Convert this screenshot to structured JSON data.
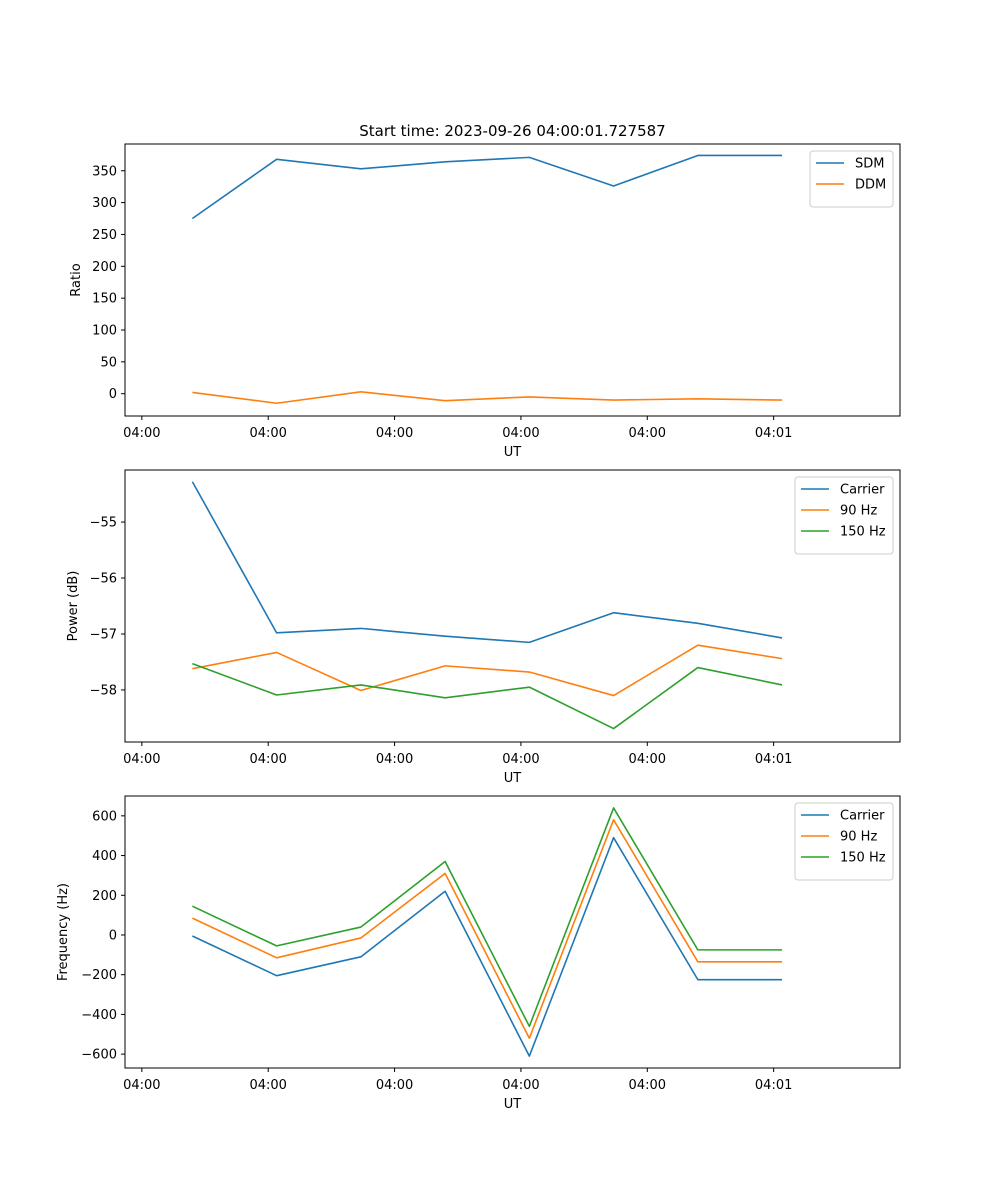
{
  "chart_data": [
    {
      "type": "line",
      "title": "Start time: 2023-09-26 04:00:01.727587",
      "xlabel": "UT",
      "ylabel": "Ratio",
      "x": [
        1,
        2,
        3,
        4,
        5,
        6,
        7,
        8
      ],
      "xlim": [
        0.2,
        9.4
      ],
      "xticks": [
        {
          "value": 0.4,
          "label": "04:00"
        },
        {
          "value": 1.9,
          "label": "04:00"
        },
        {
          "value": 3.4,
          "label": "04:00"
        },
        {
          "value": 4.9,
          "label": "04:00"
        },
        {
          "value": 6.4,
          "label": "04:00"
        },
        {
          "value": 7.9,
          "label": "04:01"
        }
      ],
      "ylim": [
        -35,
        392
      ],
      "yticks": [
        0,
        50,
        100,
        150,
        200,
        250,
        300,
        350
      ],
      "legend": "top-right",
      "series": [
        {
          "name": "SDM",
          "color": "#1f77b4",
          "values": [
            275,
            368,
            353,
            364,
            371,
            326,
            374,
            374
          ]
        },
        {
          "name": "DDM",
          "color": "#ff7f0e",
          "values": [
            2,
            -15,
            3,
            -11,
            -5,
            -10,
            -8,
            -10
          ]
        }
      ]
    },
    {
      "type": "line",
      "title": "",
      "xlabel": "UT",
      "ylabel": "Power (dB)",
      "x": [
        1,
        2,
        3,
        4,
        5,
        6,
        7,
        8
      ],
      "xlim": [
        0.2,
        9.4
      ],
      "xticks": [
        {
          "value": 0.4,
          "label": "04:00"
        },
        {
          "value": 1.9,
          "label": "04:00"
        },
        {
          "value": 3.4,
          "label": "04:00"
        },
        {
          "value": 4.9,
          "label": "04:00"
        },
        {
          "value": 6.4,
          "label": "04:00"
        },
        {
          "value": 7.9,
          "label": "04:01"
        }
      ],
      "ylim": [
        -58.93,
        -54.07
      ],
      "yticks": [
        -58,
        -57,
        -56,
        -55
      ],
      "legend": "top-right",
      "series": [
        {
          "name": "Carrier",
          "color": "#1f77b4",
          "values": [
            -54.28,
            -56.98,
            -56.9,
            -57.04,
            -57.15,
            -56.62,
            -56.81,
            -57.07
          ]
        },
        {
          "name": "90 Hz",
          "color": "#ff7f0e",
          "values": [
            -57.62,
            -57.33,
            -58.01,
            -57.57,
            -57.68,
            -58.1,
            -57.2,
            -57.44
          ]
        },
        {
          "name": "150 Hz",
          "color": "#2ca02c",
          "values": [
            -57.53,
            -58.09,
            -57.91,
            -58.14,
            -57.95,
            -58.69,
            -57.6,
            -57.91
          ]
        }
      ]
    },
    {
      "type": "line",
      "title": "",
      "xlabel": "UT",
      "ylabel": "Frequency (Hz)",
      "x": [
        1,
        2,
        3,
        4,
        5,
        6,
        7,
        8
      ],
      "xlim": [
        0.2,
        9.4
      ],
      "xticks": [
        {
          "value": 0.4,
          "label": "04:00"
        },
        {
          "value": 1.9,
          "label": "04:00"
        },
        {
          "value": 3.4,
          "label": "04:00"
        },
        {
          "value": 4.9,
          "label": "04:00"
        },
        {
          "value": 6.4,
          "label": "04:00"
        },
        {
          "value": 7.9,
          "label": "04:01"
        }
      ],
      "ylim": [
        -670,
        700
      ],
      "yticks": [
        -600,
        -400,
        -200,
        0,
        200,
        400,
        600
      ],
      "legend": "top-right",
      "series": [
        {
          "name": "Carrier",
          "color": "#1f77b4",
          "values": [
            -5,
            -205,
            -110,
            220,
            -610,
            490,
            -225,
            -225
          ]
        },
        {
          "name": "90 Hz",
          "color": "#ff7f0e",
          "values": [
            85,
            -115,
            -15,
            310,
            -520,
            580,
            -135,
            -135
          ]
        },
        {
          "name": "150 Hz",
          "color": "#2ca02c",
          "values": [
            145,
            -55,
            40,
            370,
            -460,
            640,
            -75,
            -75
          ]
        }
      ]
    }
  ]
}
